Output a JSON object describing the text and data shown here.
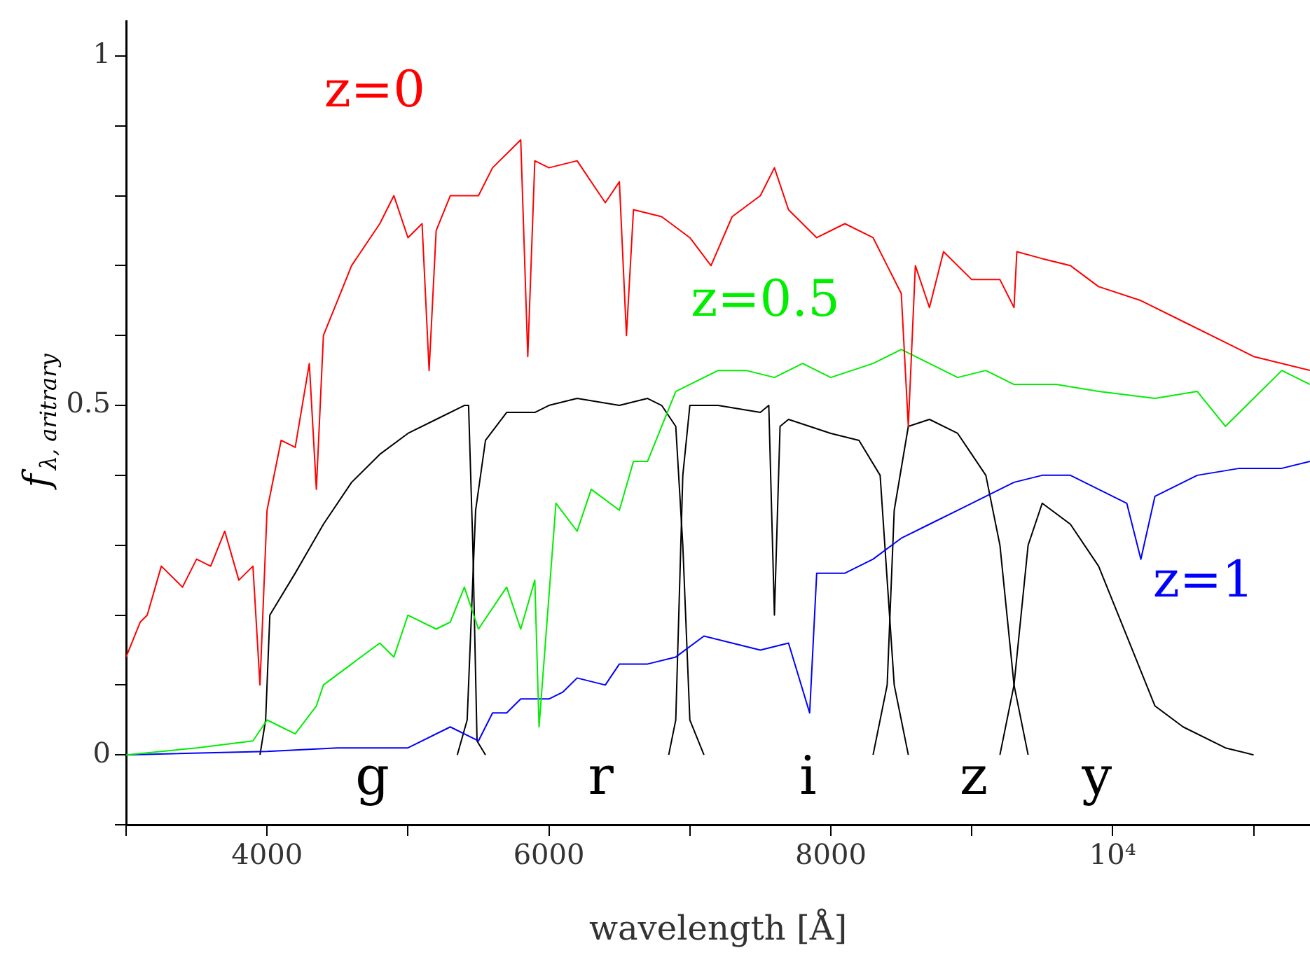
{
  "chart_data": {
    "type": "line",
    "xlabel": "wavelength [Å]",
    "ylabel": "f$_{λ, aritrary}$",
    "xlim": [
      3000,
      11400
    ],
    "ylim": [
      -0.1,
      1.05
    ],
    "xticks": [
      {
        "value": 3000,
        "label": null
      },
      4000,
      {
        "value": 5000,
        "label": null
      },
      6000,
      {
        "value": 7000,
        "label": null
      },
      8000,
      {
        "value": 9000,
        "label": null
      },
      {
        "value": 10000,
        "label": "10⁴"
      },
      {
        "value": 11000,
        "label": null
      }
    ],
    "yticks": [
      {
        "value": -0.1,
        "label": null
      },
      0,
      {
        "value": 0.1,
        "label": null
      },
      {
        "value": 0.2,
        "label": null
      },
      {
        "value": 0.3,
        "label": null
      },
      {
        "value": 0.4,
        "label": null
      },
      0.5,
      {
        "value": 0.6,
        "label": null
      },
      {
        "value": 0.7,
        "label": null
      },
      {
        "value": 0.8,
        "label": null
      },
      {
        "value": 0.9,
        "label": null
      },
      1
    ],
    "grid": false,
    "legend": false,
    "marker": "none",
    "line_style": "solid",
    "series": [
      {
        "name": "z=0",
        "color": "#ff0000",
        "x": [
          3000,
          3100,
          3150,
          3250,
          3400,
          3500,
          3600,
          3700,
          3800,
          3900,
          3950,
          4000,
          4100,
          4200,
          4300,
          4350,
          4400,
          4500,
          4600,
          4800,
          4900,
          5000,
          5100,
          5150,
          5200,
          5300,
          5500,
          5600,
          5800,
          5850,
          5900,
          6000,
          6200,
          6400,
          6500,
          6550,
          6600,
          6800,
          7000,
          7150,
          7300,
          7500,
          7600,
          7700,
          7900,
          8100,
          8300,
          8400,
          8500,
          8550,
          8600,
          8700,
          8800,
          9000,
          9200,
          9300,
          9320,
          9500,
          9700,
          9900,
          10200,
          10500,
          10800,
          11000,
          11400
        ],
        "values": [
          0.14,
          0.19,
          0.2,
          0.27,
          0.24,
          0.28,
          0.27,
          0.32,
          0.25,
          0.27,
          0.1,
          0.35,
          0.45,
          0.44,
          0.56,
          0.38,
          0.6,
          0.65,
          0.7,
          0.76,
          0.8,
          0.74,
          0.76,
          0.55,
          0.75,
          0.8,
          0.8,
          0.84,
          0.88,
          0.57,
          0.85,
          0.84,
          0.85,
          0.79,
          0.82,
          0.6,
          0.78,
          0.77,
          0.74,
          0.7,
          0.77,
          0.8,
          0.84,
          0.78,
          0.74,
          0.76,
          0.74,
          0.7,
          0.66,
          0.47,
          0.7,
          0.64,
          0.72,
          0.68,
          0.68,
          0.64,
          0.72,
          0.71,
          0.7,
          0.67,
          0.65,
          0.62,
          0.59,
          0.57,
          0.55
        ]
      },
      {
        "name": "z=0.5",
        "color": "#00ee00",
        "x": [
          3000,
          3500,
          3900,
          4000,
          4100,
          4200,
          4350,
          4400,
          4600,
          4800,
          4900,
          5000,
          5200,
          5300,
          5400,
          5500,
          5700,
          5800,
          5900,
          5930,
          6050,
          6200,
          6300,
          6500,
          6600,
          6700,
          6800,
          6900,
          7000,
          7200,
          7400,
          7600,
          7800,
          8000,
          8300,
          8500,
          8700,
          8900,
          9100,
          9300,
          9600,
          9900,
          10300,
          10600,
          10800,
          11000,
          11200,
          11400
        ],
        "values": [
          0,
          0.01,
          0.02,
          0.05,
          0.04,
          0.03,
          0.07,
          0.1,
          0.13,
          0.16,
          0.14,
          0.2,
          0.18,
          0.19,
          0.24,
          0.18,
          0.24,
          0.18,
          0.25,
          0.04,
          0.36,
          0.32,
          0.38,
          0.35,
          0.42,
          0.42,
          0.47,
          0.52,
          0.53,
          0.55,
          0.55,
          0.54,
          0.56,
          0.54,
          0.56,
          0.58,
          0.56,
          0.54,
          0.55,
          0.53,
          0.53,
          0.52,
          0.51,
          0.52,
          0.47,
          0.51,
          0.55,
          0.53
        ]
      },
      {
        "name": "z=1",
        "color": "#0000ff",
        "x": [
          3000,
          4000,
          4500,
          5000,
          5300,
          5500,
          5600,
          5700,
          5800,
          6000,
          6100,
          6200,
          6400,
          6500,
          6700,
          6900,
          7100,
          7300,
          7500,
          7700,
          7850,
          7900,
          8100,
          8300,
          8500,
          8700,
          8900,
          9100,
          9300,
          9500,
          9700,
          9900,
          10100,
          10200,
          10300,
          10600,
          10900,
          11200,
          11400
        ],
        "values": [
          0,
          0.005,
          0.01,
          0.01,
          0.04,
          0.02,
          0.06,
          0.06,
          0.08,
          0.08,
          0.09,
          0.11,
          0.1,
          0.13,
          0.13,
          0.14,
          0.17,
          0.16,
          0.15,
          0.16,
          0.06,
          0.26,
          0.26,
          0.28,
          0.31,
          0.33,
          0.35,
          0.37,
          0.39,
          0.4,
          0.4,
          0.38,
          0.36,
          0.28,
          0.37,
          0.4,
          0.41,
          0.41,
          0.42
        ]
      },
      {
        "color": "#000000",
        "x": [
          3950,
          3990,
          4020,
          4200,
          4400,
          4600,
          4800,
          5000,
          5200,
          5400,
          5430,
          5460,
          5490,
          5550
        ],
        "values": [
          0,
          0.05,
          0.2,
          0.26,
          0.33,
          0.39,
          0.43,
          0.46,
          0.48,
          0.5,
          0.5,
          0.3,
          0.02,
          0
        ]
      },
      {
        "color": "#000000",
        "x": [
          5350,
          5420,
          5480,
          5550,
          5700,
          5900,
          6000,
          6200,
          6500,
          6700,
          6800,
          6900,
          6950,
          7000,
          7100
        ],
        "values": [
          0,
          0.05,
          0.35,
          0.45,
          0.49,
          0.49,
          0.5,
          0.51,
          0.5,
          0.51,
          0.5,
          0.47,
          0.3,
          0.05,
          0
        ]
      },
      {
        "color": "#000000",
        "x": [
          6850,
          6900,
          6950,
          7000,
          7200,
          7500,
          7560,
          7600,
          7640,
          7700,
          8000,
          8200,
          8350,
          8450,
          8550
        ],
        "values": [
          0,
          0.05,
          0.4,
          0.5,
          0.5,
          0.49,
          0.5,
          0.2,
          0.47,
          0.48,
          0.46,
          0.45,
          0.4,
          0.1,
          0
        ]
      },
      {
        "color": "#000000",
        "x": [
          8300,
          8400,
          8450,
          8550,
          8700,
          8900,
          9000,
          9100,
          9200,
          9300,
          9400
        ],
        "values": [
          0,
          0.1,
          0.35,
          0.47,
          0.48,
          0.46,
          0.43,
          0.4,
          0.3,
          0.1,
          0
        ]
      },
      {
        "color": "#000000",
        "x": [
          9200,
          9300,
          9400,
          9500,
          9700,
          9900,
          10100,
          10300,
          10500,
          10800,
          11000
        ],
        "values": [
          0,
          0.1,
          0.3,
          0.36,
          0.33,
          0.27,
          0.17,
          0.07,
          0.04,
          0.01,
          0
        ]
      }
    ],
    "annotations": [
      "g",
      "r",
      "i",
      "z",
      "y"
    ]
  }
}
